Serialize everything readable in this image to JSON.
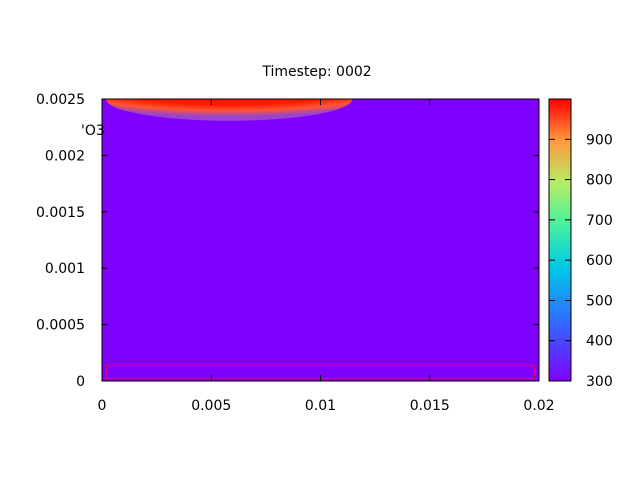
{
  "chart_data": {
    "type": "heatmap",
    "title": "Timestep: 0002",
    "xlabel": "",
    "ylabel": "",
    "xlim": [
      0,
      0.02
    ],
    "ylim": [
      0,
      0.0025
    ],
    "x_ticks": [
      "0",
      "0.005",
      "0.01",
      "0.015",
      "0.02"
    ],
    "x_tick_values": [
      0,
      0.005,
      0.01,
      0.015,
      0.02
    ],
    "y_ticks": [
      "0",
      "0.0005",
      "0.001",
      "0.0015",
      "0.002",
      "0.0025"
    ],
    "y_tick_values": [
      0,
      0.0005,
      0.001,
      0.0015,
      0.002,
      0.0025
    ],
    "colorbar": {
      "range": [
        300,
        1000
      ],
      "ticks": [
        "300",
        "400",
        "500",
        "600",
        "700",
        "800",
        "900"
      ],
      "tick_values": [
        300,
        400,
        500,
        600,
        700,
        800,
        900
      ],
      "palette": "rainbow"
    },
    "background_value": 300,
    "hot_region": {
      "x_range": [
        0.0,
        0.011
      ],
      "y_range": [
        0.00236,
        0.0025
      ],
      "peak_value": 1000
    },
    "outline_box": {
      "x_range": [
        0.0002,
        0.0198
      ],
      "y_range": [
        0.0,
        0.00014
      ],
      "color": "#e0007f"
    },
    "annotation": "'O3"
  }
}
